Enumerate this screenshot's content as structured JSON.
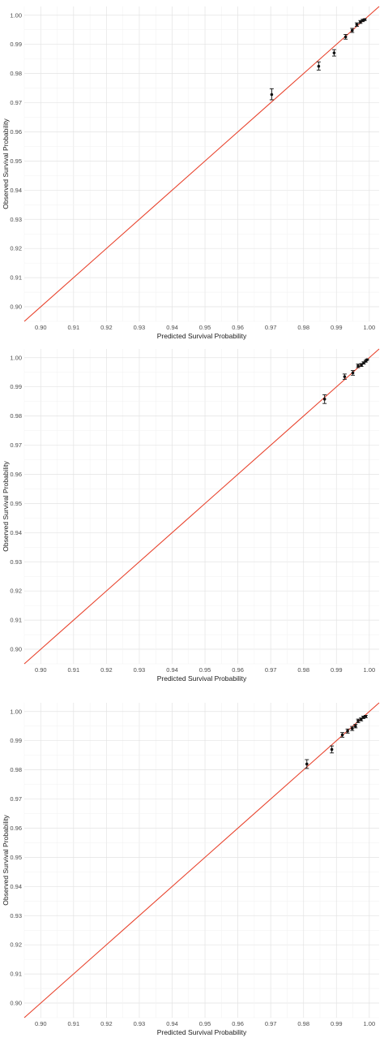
{
  "chart_data": [
    {
      "type": "scatter",
      "xlabel": "Predicted Survival Probability",
      "ylabel": "Observed Survival Probability",
      "xlim": [
        0.895,
        1.003
      ],
      "ylim": [
        0.895,
        1.003
      ],
      "xticks": [
        "0.90",
        "0.91",
        "0.92",
        "0.93",
        "0.94",
        "0.95",
        "0.96",
        "0.97",
        "0.98",
        "0.99",
        "1.00"
      ],
      "yticks": [
        "0.90",
        "0.91",
        "0.92",
        "0.93",
        "0.94",
        "0.95",
        "0.96",
        "0.97",
        "0.98",
        "0.99",
        "1.00"
      ],
      "grid": true,
      "reference_line": {
        "slope": 1,
        "intercept": 0,
        "color": "#e8402a"
      },
      "points": [
        {
          "x": 0.9703,
          "y": 0.9728,
          "lo": 0.971,
          "hi": 0.9748
        },
        {
          "x": 0.9846,
          "y": 0.9825,
          "lo": 0.9812,
          "hi": 0.984
        },
        {
          "x": 0.9893,
          "y": 0.9871,
          "lo": 0.986,
          "hi": 0.9882
        },
        {
          "x": 0.9928,
          "y": 0.9926,
          "lo": 0.9918,
          "hi": 0.9934
        },
        {
          "x": 0.9948,
          "y": 0.9948,
          "lo": 0.9941,
          "hi": 0.9955
        },
        {
          "x": 0.9962,
          "y": 0.9968,
          "lo": 0.9962,
          "hi": 0.9974
        },
        {
          "x": 0.9973,
          "y": 0.9977,
          "lo": 0.9972,
          "hi": 0.9982
        },
        {
          "x": 0.998,
          "y": 0.9982,
          "lo": 0.9978,
          "hi": 0.9986
        },
        {
          "x": 0.9986,
          "y": 0.9985,
          "lo": 0.9982,
          "hi": 0.9988
        }
      ]
    },
    {
      "type": "scatter",
      "xlabel": "Predicted Survival Probability",
      "ylabel": "Observed Survival Probability",
      "xlim": [
        0.895,
        1.003
      ],
      "ylim": [
        0.895,
        1.003
      ],
      "xticks": [
        "0.90",
        "0.91",
        "0.92",
        "0.93",
        "0.94",
        "0.95",
        "0.96",
        "0.97",
        "0.98",
        "0.99",
        "1.00"
      ],
      "yticks": [
        "0.90",
        "0.91",
        "0.92",
        "0.93",
        "0.94",
        "0.95",
        "0.96",
        "0.97",
        "0.98",
        "0.99",
        "1.00"
      ],
      "grid": true,
      "reference_line": {
        "slope": 1,
        "intercept": 0,
        "color": "#e8402a"
      },
      "points": [
        {
          "x": 0.9864,
          "y": 0.9858,
          "lo": 0.9843,
          "hi": 0.9873
        },
        {
          "x": 0.9925,
          "y": 0.9935,
          "lo": 0.9926,
          "hi": 0.9944
        },
        {
          "x": 0.995,
          "y": 0.9948,
          "lo": 0.994,
          "hi": 0.9956
        },
        {
          "x": 0.9966,
          "y": 0.9972,
          "lo": 0.9966,
          "hi": 0.9978
        },
        {
          "x": 0.9976,
          "y": 0.9975,
          "lo": 0.997,
          "hi": 0.998
        },
        {
          "x": 0.9983,
          "y": 0.9982,
          "lo": 0.9978,
          "hi": 0.9986
        },
        {
          "x": 0.9989,
          "y": 0.9988,
          "lo": 0.9985,
          "hi": 0.9991
        },
        {
          "x": 0.9993,
          "y": 0.9993,
          "lo": 0.9991,
          "hi": 0.9995
        }
      ]
    },
    {
      "type": "scatter",
      "xlabel": "Predicted Survival Probability",
      "ylabel": "Observed Survival Probability",
      "xlim": [
        0.895,
        1.003
      ],
      "ylim": [
        0.895,
        1.003
      ],
      "xticks": [
        "0.90",
        "0.91",
        "0.92",
        "0.93",
        "0.94",
        "0.95",
        "0.96",
        "0.97",
        "0.98",
        "0.99",
        "1.00"
      ],
      "yticks": [
        "0.90",
        "0.91",
        "0.92",
        "0.93",
        "0.94",
        "0.95",
        "0.96",
        "0.97",
        "0.98",
        "0.99",
        "1.00"
      ],
      "grid": true,
      "reference_line": {
        "slope": 1,
        "intercept": 0,
        "color": "#e8402a"
      },
      "points": [
        {
          "x": 0.981,
          "y": 0.982,
          "lo": 0.9805,
          "hi": 0.9835
        },
        {
          "x": 0.9886,
          "y": 0.987,
          "lo": 0.9858,
          "hi": 0.9882
        },
        {
          "x": 0.9918,
          "y": 0.992,
          "lo": 0.9912,
          "hi": 0.9928
        },
        {
          "x": 0.9934,
          "y": 0.9933,
          "lo": 0.9926,
          "hi": 0.994
        },
        {
          "x": 0.9948,
          "y": 0.9942,
          "lo": 0.9935,
          "hi": 0.9949
        },
        {
          "x": 0.9958,
          "y": 0.995,
          "lo": 0.9944,
          "hi": 0.9956
        },
        {
          "x": 0.9966,
          "y": 0.9968,
          "lo": 0.9962,
          "hi": 0.9974
        },
        {
          "x": 0.9975,
          "y": 0.9973,
          "lo": 0.9968,
          "hi": 0.9978
        },
        {
          "x": 0.9982,
          "y": 0.998,
          "lo": 0.9976,
          "hi": 0.9984
        },
        {
          "x": 0.9989,
          "y": 0.9983,
          "lo": 0.9979,
          "hi": 0.9987
        }
      ]
    }
  ]
}
